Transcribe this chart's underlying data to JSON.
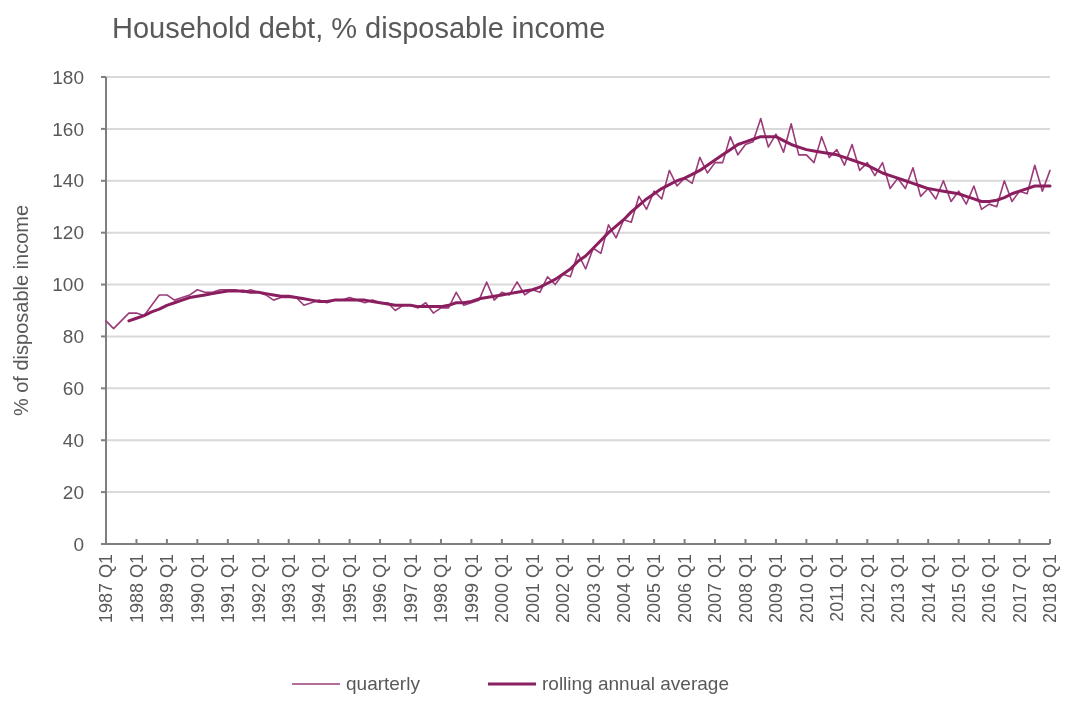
{
  "chart_data": {
    "type": "line",
    "title": "Household debt, % disposable income",
    "ylabel": "% of disposable income",
    "categories": [
      "1987 Q1",
      null,
      null,
      null,
      "1988 Q1",
      null,
      null,
      null,
      "1989 Q1",
      null,
      null,
      null,
      "1990 Q1",
      null,
      null,
      null,
      "1991 Q1",
      null,
      null,
      null,
      "1992 Q1",
      null,
      null,
      null,
      "1993 Q1",
      null,
      null,
      null,
      "1994 Q1",
      null,
      null,
      null,
      "1995 Q1",
      null,
      null,
      null,
      "1996 Q1",
      null,
      null,
      null,
      "1997 Q1",
      null,
      null,
      null,
      "1998 Q1",
      null,
      null,
      null,
      "1999 Q1",
      null,
      null,
      null,
      "2000 Q1",
      null,
      null,
      null,
      "2001 Q1",
      null,
      null,
      null,
      "2002 Q1",
      null,
      null,
      null,
      "2003 Q1",
      null,
      null,
      null,
      "2004 Q1",
      null,
      null,
      null,
      "2005 Q1",
      null,
      null,
      null,
      "2006 Q1",
      null,
      null,
      null,
      "2007 Q1",
      null,
      null,
      null,
      "2008 Q1",
      null,
      null,
      null,
      "2009 Q1",
      null,
      null,
      null,
      "2010 Q1",
      null,
      null,
      null,
      "2011 Q1",
      null,
      null,
      null,
      "2012 Q1",
      null,
      null,
      null,
      "2013 Q1",
      null,
      null,
      null,
      "2014 Q1",
      null,
      null,
      null,
      "2015 Q1",
      null,
      null,
      null,
      "2016 Q1",
      null,
      null,
      null,
      "2017 Q1",
      null,
      null,
      null,
      "2018 Q1"
    ],
    "series": [
      {
        "name": "quarterly",
        "color": "#9b3b7a",
        "values": [
          86,
          83,
          86,
          89,
          89,
          88,
          92,
          96,
          96,
          94,
          95,
          96,
          98,
          97,
          97,
          98,
          98,
          98,
          97,
          98,
          97,
          96,
          94,
          95,
          95,
          95,
          92,
          93,
          94,
          93,
          94,
          94,
          95,
          94,
          93,
          94,
          93,
          93,
          90,
          92,
          92,
          91,
          93,
          89,
          91,
          91,
          97,
          92,
          93,
          94,
          101,
          94,
          97,
          96,
          101,
          96,
          98,
          97,
          103,
          100,
          104,
          103,
          112,
          106,
          114,
          112,
          123,
          118,
          125,
          124,
          134,
          129,
          136,
          133,
          144,
          138,
          141,
          139,
          149,
          143,
          147,
          147,
          157,
          150,
          154,
          155,
          164,
          153,
          158,
          151,
          162,
          150,
          150,
          147,
          157,
          149,
          152,
          146,
          154,
          144,
          147,
          142,
          147,
          137,
          141,
          137,
          145,
          134,
          137,
          133,
          140,
          132,
          136,
          131,
          138,
          129,
          131,
          130,
          140,
          132,
          136,
          135,
          146,
          136,
          144
        ]
      },
      {
        "name": "rolling annual average",
        "color": "#8b1e5e",
        "values": [
          null,
          null,
          null,
          86,
          87,
          88,
          89.5,
          90.5,
          92,
          93,
          94,
          95,
          95.5,
          96,
          96.5,
          97,
          97.5,
          97.5,
          97.5,
          97,
          97,
          96.5,
          96,
          95.5,
          95.5,
          95,
          94.5,
          94,
          93.5,
          93.5,
          94,
          94,
          94,
          94,
          94,
          93.5,
          93,
          92.5,
          92,
          92,
          92,
          91.5,
          91.5,
          91.5,
          91.5,
          92,
          93,
          93,
          93.5,
          94.5,
          95,
          95.5,
          96,
          96.5,
          97,
          97.5,
          98,
          99,
          100.5,
          102,
          104,
          106,
          109,
          111,
          114,
          117,
          120,
          122.5,
          125,
          128,
          130.5,
          133,
          135,
          137,
          138.5,
          140,
          141,
          142.5,
          144,
          146,
          148,
          150,
          152,
          154,
          155,
          156,
          157,
          157,
          157,
          155.5,
          154,
          153,
          152,
          151.5,
          151,
          150.5,
          150,
          149,
          148,
          147,
          146,
          144.5,
          143,
          142,
          141,
          140,
          139,
          138,
          137,
          136.5,
          136,
          135.5,
          135,
          134,
          133,
          132,
          132,
          132.5,
          133.5,
          135,
          136,
          137,
          138,
          138,
          138
        ]
      }
    ],
    "ylim": [
      0,
      180
    ],
    "yticks": [
      0,
      20,
      40,
      60,
      80,
      100,
      120,
      140,
      160,
      180
    ],
    "grid": "y",
    "legend": "bottom"
  }
}
